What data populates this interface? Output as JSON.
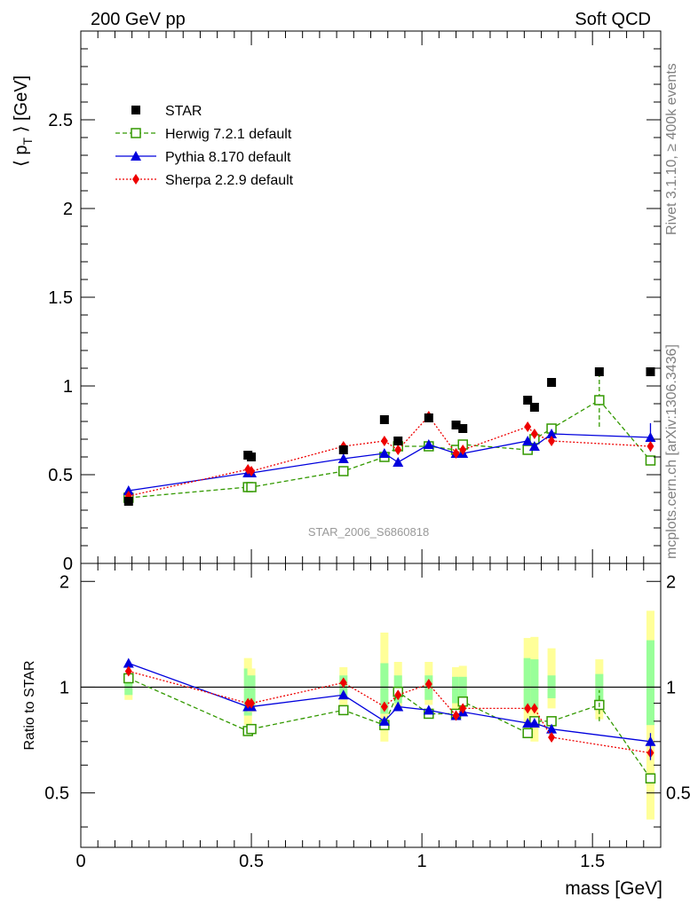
{
  "header": {
    "left_title": "200 GeV pp",
    "right_title": "Soft QCD"
  },
  "side_labels": {
    "rivet": "Rivet 3.1.10, ≥ 400k events",
    "mcplots": "mcplots.cern.ch [arXiv:1306.3436]"
  },
  "chart_data": [
    {
      "type": "scatter",
      "panel": "main",
      "title": "",
      "xlabel": "mass [GeV]",
      "ylabel": "⟨ p_T ⟩ [GeV]",
      "ylabel_parts": {
        "pre": "⟨ p",
        "sub": "T",
        "post": " ⟩ [GeV]"
      },
      "watermark": "STAR_2006_S6860818",
      "xlim": [
        0,
        1.7
      ],
      "ylim": [
        0,
        3.0
      ],
      "y_ticks": [
        {
          "value": 0,
          "label": "0"
        },
        {
          "value": 0.5,
          "label": "0.5"
        },
        {
          "value": 1,
          "label": "1"
        },
        {
          "value": 1.5,
          "label": "1.5"
        },
        {
          "value": 2,
          "label": "2"
        },
        {
          "value": 2.5,
          "label": "2.5"
        }
      ],
      "legend_position": "top-left",
      "series": [
        {
          "name": "STAR",
          "style": "data",
          "color": "#000000",
          "marker": "square-filled",
          "x": [
            0.14,
            0.49,
            0.5,
            0.77,
            0.89,
            0.93,
            1.02,
            1.1,
            1.12,
            1.31,
            1.33,
            1.38,
            1.52,
            1.67
          ],
          "y": [
            0.35,
            0.61,
            0.6,
            0.64,
            0.81,
            0.69,
            0.82,
            0.78,
            0.76,
            0.92,
            0.88,
            1.02,
            1.08,
            1.08
          ]
        },
        {
          "name": "Herwig 7.2.1 default",
          "style": "dashed",
          "color": "#339900",
          "marker": "square-open",
          "x": [
            0.14,
            0.49,
            0.5,
            0.77,
            0.89,
            0.93,
            1.02,
            1.1,
            1.12,
            1.31,
            1.33,
            1.38,
            1.52,
            1.67
          ],
          "y": [
            0.37,
            0.43,
            0.43,
            0.52,
            0.6,
            0.66,
            0.66,
            0.64,
            0.67,
            0.64,
            0.7,
            0.76,
            0.92,
            0.58
          ],
          "err": [
            0,
            0,
            0,
            0,
            0,
            0,
            0,
            0,
            0,
            0,
            0,
            0,
            0.15,
            0
          ]
        },
        {
          "name": "Pythia 8.170 default",
          "style": "solid",
          "color": "#0000dd",
          "marker": "triangle-filled",
          "x": [
            0.14,
            0.49,
            0.5,
            0.77,
            0.89,
            0.93,
            1.02,
            1.1,
            1.12,
            1.31,
            1.33,
            1.38,
            1.67
          ],
          "y": [
            0.41,
            0.51,
            0.51,
            0.59,
            0.62,
            0.57,
            0.67,
            0.62,
            0.62,
            0.69,
            0.66,
            0.73,
            0.71
          ],
          "err": [
            0,
            0,
            0,
            0,
            0,
            0,
            0,
            0,
            0,
            0,
            0,
            0,
            0.08
          ]
        },
        {
          "name": "Sherpa 2.2.9 default",
          "style": "dotted",
          "color": "#ee0000",
          "marker": "diamond-filled",
          "x": [
            0.14,
            0.49,
            0.5,
            0.77,
            0.89,
            0.93,
            1.02,
            1.1,
            1.12,
            1.31,
            1.33,
            1.38,
            1.67
          ],
          "y": [
            0.38,
            0.53,
            0.52,
            0.66,
            0.69,
            0.64,
            0.83,
            0.62,
            0.64,
            0.77,
            0.73,
            0.69,
            0.66
          ]
        }
      ]
    },
    {
      "type": "scatter",
      "panel": "ratio",
      "title": "",
      "xlabel": "mass [GeV]",
      "ylabel": "Ratio to STAR",
      "xlim": [
        0,
        1.7
      ],
      "ylim": [
        0.35,
        2.25
      ],
      "x_ticks": [
        {
          "value": 0,
          "label": "0"
        },
        {
          "value": 0.5,
          "label": "0.5"
        },
        {
          "value": 1,
          "label": "1"
        },
        {
          "value": 1.5,
          "label": "1.5"
        }
      ],
      "y_ticks": [
        {
          "value": 0.5,
          "label": "0.5"
        },
        {
          "value": 1,
          "label": "1"
        },
        {
          "value": 2,
          "label": "2"
        }
      ],
      "reference_line": 1,
      "uncertainty_bands": {
        "x": [
          0.14,
          0.49,
          0.5,
          0.77,
          0.89,
          0.93,
          1.02,
          1.1,
          1.12,
          1.31,
          1.33,
          1.38,
          1.52,
          1.67
        ],
        "stat": [
          [
            0.95,
            1.05
          ],
          [
            0.83,
            1.13
          ],
          [
            0.88,
            1.08
          ],
          [
            0.94,
            1.08
          ],
          [
            0.84,
            1.17
          ],
          [
            0.9,
            1.08
          ],
          [
            0.92,
            1.08
          ],
          [
            0.9,
            1.07
          ],
          [
            0.91,
            1.07
          ],
          [
            0.86,
            1.21
          ],
          [
            0.87,
            1.2
          ],
          [
            0.93,
            1.08
          ],
          [
            0.89,
            1.09
          ],
          [
            0.78,
            1.36
          ]
        ],
        "total": [
          [
            0.92,
            1.08
          ],
          [
            0.78,
            1.21
          ],
          [
            0.85,
            1.13
          ],
          [
            0.89,
            1.14
          ],
          [
            0.7,
            1.43
          ],
          [
            0.86,
            1.18
          ],
          [
            0.89,
            1.18
          ],
          [
            0.85,
            1.14
          ],
          [
            0.87,
            1.15
          ],
          [
            0.72,
            1.38
          ],
          [
            0.7,
            1.39
          ],
          [
            0.87,
            1.29
          ],
          [
            0.81,
            1.2
          ],
          [
            0.42,
            1.65
          ]
        ]
      },
      "series": [
        {
          "name": "Herwig 7.2.1 default",
          "color": "#339900",
          "x": [
            0.14,
            0.49,
            0.5,
            0.77,
            0.89,
            0.93,
            1.02,
            1.1,
            1.12,
            1.31,
            1.33,
            1.38,
            1.52,
            1.67
          ],
          "y": [
            1.06,
            0.75,
            0.76,
            0.86,
            0.78,
            0.97,
            0.84,
            0.84,
            0.91,
            0.74,
            0.8,
            0.8,
            0.89,
            0.55
          ]
        },
        {
          "name": "Pythia 8.170 default",
          "color": "#0000dd",
          "x": [
            0.14,
            0.49,
            0.5,
            0.77,
            0.89,
            0.93,
            1.02,
            1.1,
            1.12,
            1.31,
            1.33,
            1.38,
            1.67
          ],
          "y": [
            1.17,
            0.88,
            0.88,
            0.95,
            0.8,
            0.88,
            0.86,
            0.83,
            0.85,
            0.79,
            0.79,
            0.76,
            0.7
          ]
        },
        {
          "name": "Sherpa 2.2.9 default",
          "color": "#ee0000",
          "x": [
            0.14,
            0.49,
            0.5,
            0.77,
            0.89,
            0.93,
            1.02,
            1.1,
            1.12,
            1.31,
            1.33,
            1.38,
            1.67
          ],
          "y": [
            1.11,
            0.9,
            0.9,
            1.03,
            0.88,
            0.95,
            1.02,
            0.83,
            0.87,
            0.87,
            0.87,
            0.72,
            0.65
          ]
        }
      ]
    }
  ],
  "colors": {
    "stat_band": "#99ff99",
    "total_band": "#ffff99",
    "axis": "#000000",
    "watermark": "#999999",
    "side_label": "#808080"
  }
}
